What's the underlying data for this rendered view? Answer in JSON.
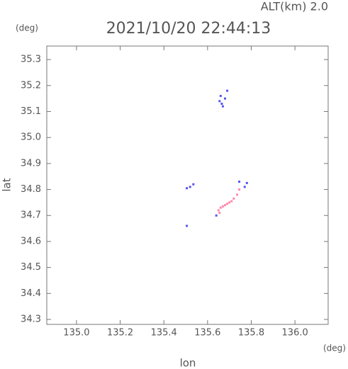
{
  "chart_data": {
    "type": "scatter",
    "title": "2021/10/20 22:44:13",
    "subtitle": "ALT(km) 2.0",
    "x_label": "lon",
    "y_label": "lat",
    "x_unit": "(deg)",
    "y_unit": "(deg)",
    "xlim": [
      134.864,
      136.152
    ],
    "ylim": [
      34.281,
      35.352
    ],
    "xticks": [
      {
        "value": 135.0,
        "label": "135.0"
      },
      135.2,
      135.4,
      135.6,
      135.8,
      {
        "value": 136.0,
        "label": "136.0"
      }
    ],
    "yticks": [
      34.3,
      34.4,
      34.5,
      34.6,
      34.7,
      34.8,
      34.9,
      {
        "value": 35.0,
        "label": "35.0"
      },
      35.1,
      35.2,
      35.3
    ],
    "series": [
      {
        "color": "#5555ee",
        "x": [
          135.655,
          135.665,
          135.68,
          135.69,
          135.67,
          135.66,
          135.505,
          135.52,
          135.535,
          135.745,
          135.77,
          135.78,
          135.505,
          135.64
        ],
        "y": [
          35.14,
          35.13,
          35.15,
          35.18,
          35.12,
          35.16,
          34.805,
          34.81,
          34.82,
          34.83,
          34.81,
          34.825,
          34.66,
          34.7
        ]
      },
      {
        "color": "#ff88aa",
        "x": [
          135.65,
          135.66,
          135.67,
          135.68,
          135.69,
          135.7,
          135.71,
          135.72,
          135.735,
          135.745,
          135.655
        ],
        "y": [
          34.72,
          34.73,
          34.735,
          34.74,
          34.745,
          34.75,
          34.755,
          34.765,
          34.78,
          34.8,
          34.71
        ]
      }
    ]
  }
}
